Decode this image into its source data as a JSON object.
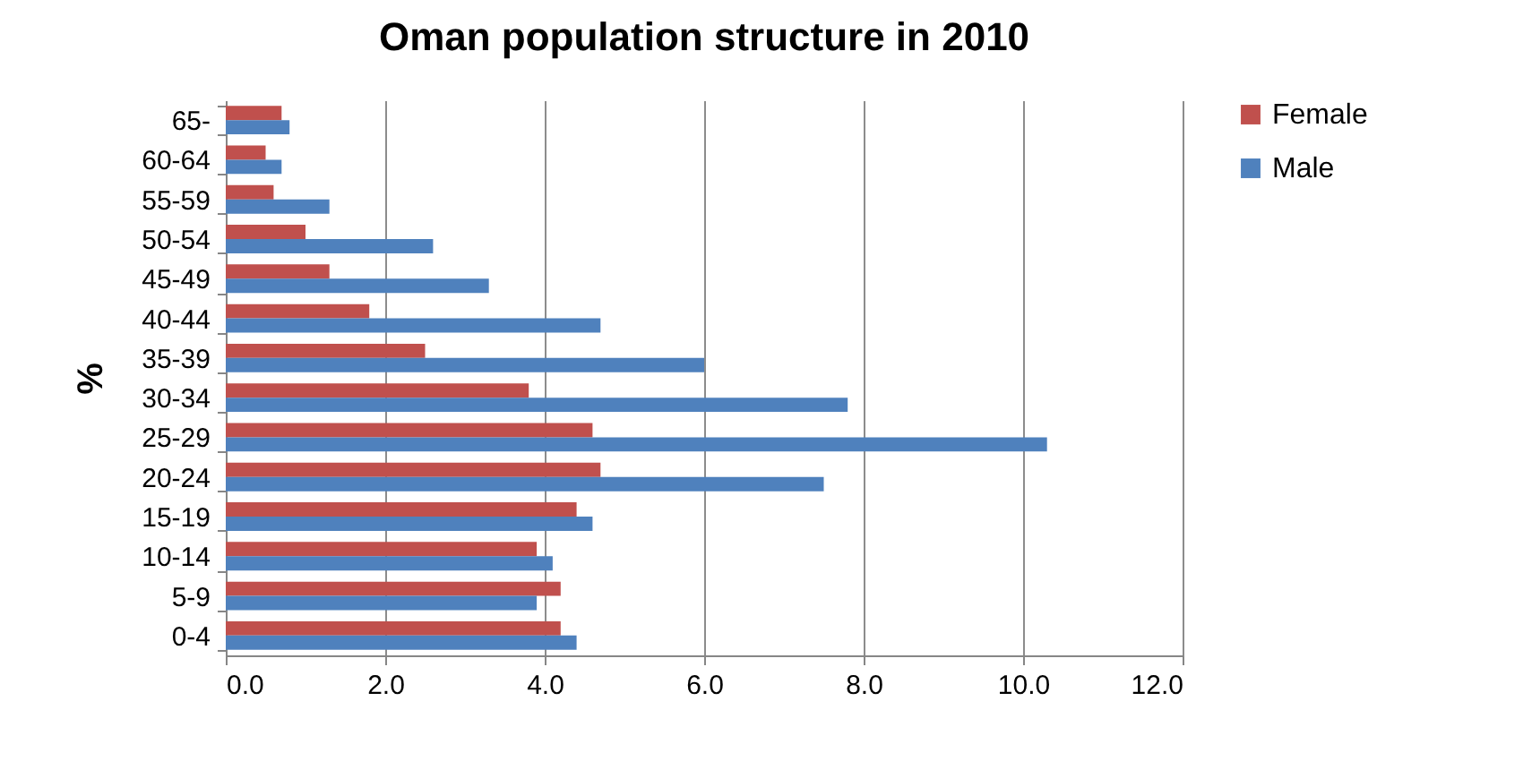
{
  "chart_data": {
    "type": "bar",
    "orientation": "horizontal",
    "title": "Oman population structure in 2010",
    "ylabel": "%",
    "categories": [
      "65-",
      "60-64",
      "55-59",
      "50-54",
      "45-49",
      "40-44",
      "35-39",
      "30-34",
      "25-29",
      "20-24",
      "15-19",
      "10-14",
      "5-9",
      "0-4"
    ],
    "series": [
      {
        "name": "Female",
        "color": "#c0504d",
        "values": [
          0.7,
          0.5,
          0.6,
          1.0,
          1.3,
          1.8,
          2.5,
          3.8,
          4.6,
          4.7,
          4.4,
          3.9,
          4.2,
          4.2
        ]
      },
      {
        "name": "Male",
        "color": "#4f81bd",
        "values": [
          0.8,
          0.7,
          1.3,
          2.6,
          3.3,
          4.7,
          6.0,
          7.8,
          10.3,
          7.5,
          4.6,
          4.1,
          3.9,
          4.4
        ]
      }
    ],
    "xlim": [
      0,
      12
    ],
    "xticks": [
      {
        "value": 0,
        "label": "0.0"
      },
      {
        "value": 2,
        "label": "2.0"
      },
      {
        "value": 4,
        "label": "4.0"
      },
      {
        "value": 6,
        "label": "6.0"
      },
      {
        "value": 8,
        "label": "8.0"
      },
      {
        "value": 10,
        "label": "10.0"
      },
      {
        "value": 12,
        "label": "12.0"
      }
    ],
    "grid": "x",
    "legend": "right"
  }
}
